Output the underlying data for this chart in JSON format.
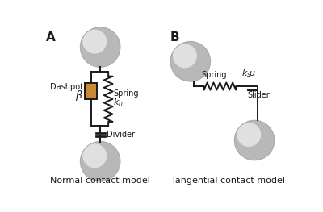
{
  "fig_width": 4.0,
  "fig_height": 2.63,
  "dpi": 100,
  "bg_color": "#ffffff",
  "sphere_color_outer": "#b8b8b8",
  "sphere_color_inner": "#e0e0e0",
  "dashpot_color": "#cc8833",
  "line_color": "#1a1a1a",
  "label_A": "A",
  "label_B": "B",
  "label_normal": "Normal contact model",
  "label_tangential": "Tangential contact model",
  "label_dashpot": "Dashpot",
  "label_beta": "β",
  "label_divider": "Divider",
  "label_mu": "μ",
  "label_slider": "Slider"
}
